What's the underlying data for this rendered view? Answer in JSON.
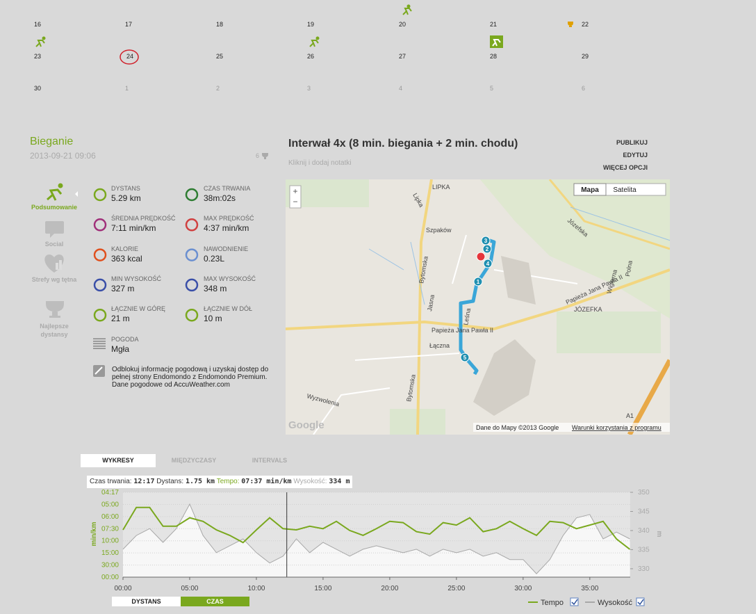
{
  "calendar": {
    "weeks": [
      [
        "16",
        "17",
        "18",
        "19",
        "20",
        "21",
        "22"
      ],
      [
        "23",
        "24",
        "25",
        "26",
        "27",
        "28",
        "29"
      ],
      [
        "30",
        "1",
        "2",
        "3",
        "4",
        "5",
        "6"
      ]
    ]
  },
  "activity": {
    "sport": "Bieganie",
    "date": "2013-09-21 09:06",
    "count": "6",
    "title": "Interwał 4x (8 min. biegania + 2 min. chodu)",
    "note_prompt": "Kliknij i dodaj notatki",
    "actions": [
      "PUBLIKUJ",
      "EDYTUJ",
      "WIĘCEJ OPCJI"
    ]
  },
  "sidebar": [
    "Podsumowanie",
    "Social",
    "Strefy wg tętna",
    "Najlepsze dystansy"
  ],
  "stats": [
    {
      "label": "DYSTANS",
      "value": "5.29 km"
    },
    {
      "label": "CZAS TRWANIA",
      "value": "38m:02s"
    },
    {
      "label": "ŚREDNIA PRĘDKOŚĆ",
      "value": "7:11 min/km"
    },
    {
      "label": "MAX PRĘDKOŚĆ",
      "value": "4:37 min/km"
    },
    {
      "label": "KALORIE",
      "value": "363 kcal"
    },
    {
      "label": "NAWODNIENIE",
      "value": "0.23L"
    },
    {
      "label": "MIN WYSOKOŚĆ",
      "value": "327 m"
    },
    {
      "label": "MAX WYSOKOŚĆ",
      "value": "348 m"
    },
    {
      "label": "ŁĄCZNIE W GÓRĘ",
      "value": "21 m"
    },
    {
      "label": "ŁĄCZNIE W DÓŁ",
      "value": "10 m"
    },
    {
      "label": "POGODA",
      "value": "Mgła"
    }
  ],
  "weather_note": {
    "text": "Odblokuj informację pogodową i uzyskaj dostęp do pełnej strony Endomondo z Endomondo Premium.",
    "source": "Dane pogodowe od AccuWeather.com"
  },
  "map": {
    "buttons": [
      "Mapa",
      "Satelita"
    ],
    "zoom": [
      "+",
      "−"
    ],
    "labels": [
      "LIPKA",
      "Lipka",
      "Szpaków",
      "Bytomska",
      "Bytomska",
      "Jasna",
      "Leśna",
      "Papieża Jana Pawła II",
      "Papieża Jana Pawła II",
      "Józefska",
      "JÓZEFKA",
      "Wigierna",
      "Polna",
      "Łączna",
      "Wyzwolenia",
      "A1"
    ],
    "markers": [
      "1",
      "2",
      "3",
      "4",
      "5"
    ],
    "attribution": "Dane do Mapy ©2013 Google",
    "terms": "Warunki korzystania z programu",
    "logo": "Google"
  },
  "tabs": [
    "WYKRESY",
    "MIĘDZYCZASY",
    "INTERVALS"
  ],
  "info": {
    "time_label": "Czas trwania:",
    "time": "12:17",
    "distance_label": "Dystans:",
    "distance": "1.75 km",
    "tempo_label": "Tempo:",
    "tempo": "07:37 min/km",
    "elevation_label": "Wysokość:",
    "elevation": "334 m"
  },
  "bottom_buttons": [
    "DYSTANS",
    "CZAS"
  ],
  "chart_data": {
    "type": "line",
    "ylabel": "min/km",
    "y2label": "m",
    "x": [
      0,
      1,
      2,
      3,
      4,
      5,
      6,
      7,
      8,
      9,
      10,
      11,
      12,
      13,
      14,
      15,
      16,
      17,
      18,
      19,
      20,
      21,
      22,
      23,
      24,
      25,
      26,
      27,
      28,
      29,
      30,
      31,
      32,
      33,
      34,
      35,
      36,
      37,
      38
    ],
    "xlim": [
      0,
      38.03
    ],
    "xticks": [
      {
        "value": 0,
        "label": "00:00"
      },
      {
        "value": 5,
        "label": "05:00"
      },
      {
        "value": 10,
        "label": "10:00"
      },
      {
        "value": 15,
        "label": "15:00"
      },
      {
        "value": 20,
        "label": "20:00"
      },
      {
        "value": 25,
        "label": "25:00"
      },
      {
        "value": 30,
        "label": "30:00"
      },
      {
        "value": 35,
        "label": "35:00"
      }
    ],
    "ylim": [
      0,
      14
    ],
    "yticks": [
      {
        "value": 14,
        "label": "04:17"
      },
      {
        "value": 12,
        "label": "05:00"
      },
      {
        "value": 10,
        "label": "06:00"
      },
      {
        "value": 8,
        "label": "07:30"
      },
      {
        "value": 6,
        "label": "10:00"
      },
      {
        "value": 4,
        "label": "15:00"
      },
      {
        "value": 2,
        "label": "30:00"
      },
      {
        "value": 0,
        "label": "00:00"
      }
    ],
    "y2lim": [
      327.8,
      350
    ],
    "y2ticks": [
      330,
      335,
      340,
      345,
      350
    ],
    "cursor": 12.28,
    "series": [
      {
        "name": "Tempo",
        "color": "#7aa81e",
        "values": [
          7.8,
          11.5,
          11.5,
          8.4,
          8.4,
          9.8,
          9.2,
          7.8,
          6.9,
          5.7,
          7.8,
          9.8,
          8.0,
          7.8,
          8.4,
          8.0,
          9.2,
          7.7,
          6.9,
          8.0,
          9.2,
          9.0,
          7.5,
          7.1,
          9.0,
          8.6,
          9.8,
          7.5,
          8.0,
          9.2,
          8.0,
          6.9,
          9.2,
          9.0,
          8.0,
          8.6,
          9.2,
          6.3,
          4.6
        ]
      },
      {
        "name": "Wysokość",
        "color": "#a8a8a8",
        "axis": "y2",
        "values": [
          335.1,
          338.7,
          340.5,
          336.9,
          340.5,
          346.9,
          338.7,
          334.2,
          336.0,
          337.8,
          334.2,
          331.5,
          333.3,
          337.8,
          334.2,
          336.9,
          335.1,
          333.3,
          335.1,
          336.0,
          335.1,
          334.2,
          335.1,
          333.3,
          335.1,
          334.2,
          335.1,
          333.3,
          334.2,
          332.4,
          332.4,
          328.7,
          332.4,
          338.7,
          343.3,
          344.2,
          337.8,
          339.6,
          337.8
        ]
      }
    ]
  }
}
